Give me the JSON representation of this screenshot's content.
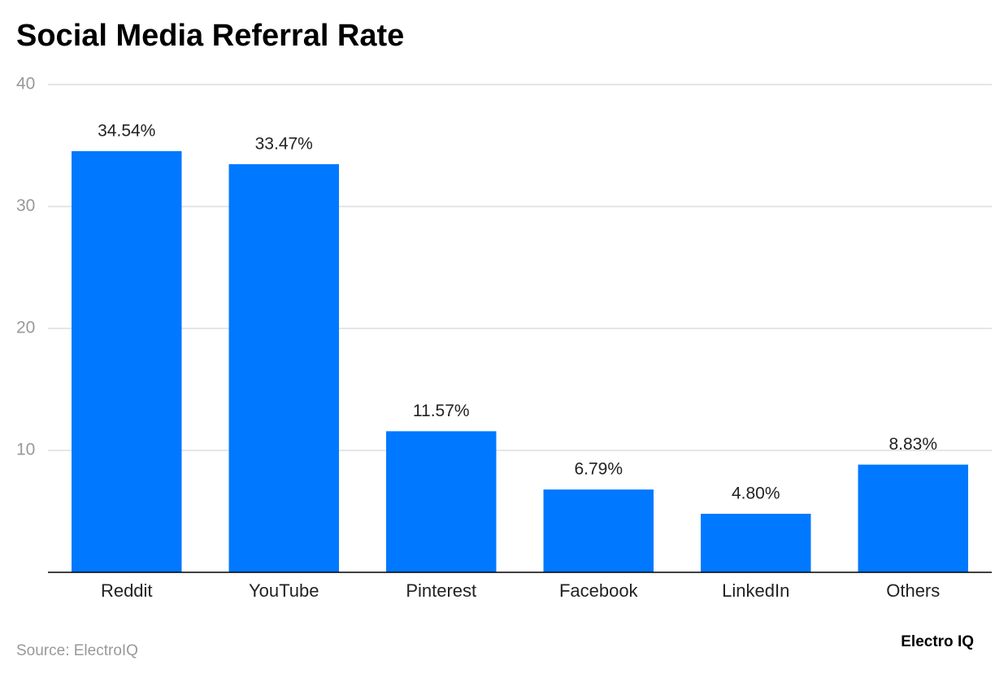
{
  "chart_data": {
    "type": "bar",
    "title": "Social Media Referral Rate",
    "categories": [
      "Reddit",
      "YouTube",
      "Pinterest",
      "Facebook",
      "LinkedIn",
      "Others"
    ],
    "values": [
      34.54,
      33.47,
      11.57,
      6.79,
      4.8,
      8.83
    ],
    "value_labels": [
      "34.54%",
      "33.47%",
      "11.57%",
      "6.79%",
      "4.80%",
      "8.83%"
    ],
    "color": "#0078ff",
    "ylim": [
      0,
      40
    ],
    "yticks": [
      10,
      20,
      30,
      40
    ],
    "grid": true,
    "source": "Source: ElectroIQ",
    "brand": "Electro IQ"
  }
}
